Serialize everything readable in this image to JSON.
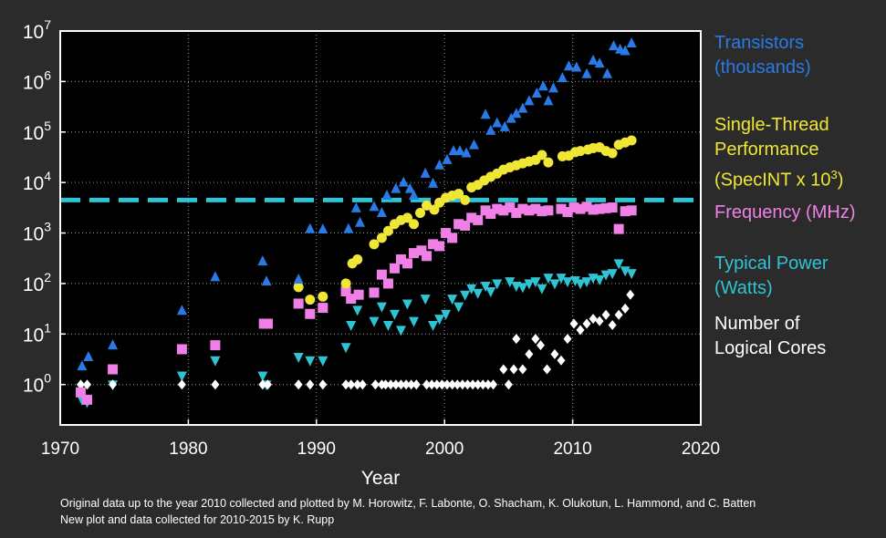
{
  "chart_data": {
    "type": "scatter",
    "xlabel": "Year",
    "xlim": [
      1970,
      2020
    ],
    "ylim_log10": [
      -0.8,
      7
    ],
    "yscale": "log",
    "xticks": [
      "1970",
      "1980",
      "1990",
      "2000",
      "2010",
      "2020"
    ],
    "yticks": [
      {
        "base": "10",
        "exp": "0",
        "value": 1
      },
      {
        "base": "10",
        "exp": "1",
        "value": 10
      },
      {
        "base": "10",
        "exp": "2",
        "value": 100
      },
      {
        "base": "10",
        "exp": "3",
        "value": 1000
      },
      {
        "base": "10",
        "exp": "4",
        "value": 10000
      },
      {
        "base": "10",
        "exp": "5",
        "value": 100000
      },
      {
        "base": "10",
        "exp": "6",
        "value": 1000000
      },
      {
        "base": "10",
        "exp": "7",
        "value": 10000000
      }
    ],
    "grid": true,
    "legend_position": "right",
    "reference_line": {
      "y": 4500,
      "color": "#2ec4d4",
      "style": "dashed"
    },
    "series": [
      {
        "name": "Transistors (thousands)",
        "marker": "triangle-up",
        "color": "#2a7ae6",
        "x": [
          1971.7,
          1972.2,
          1974.1,
          1979.5,
          1982.1,
          1985.8,
          1986.1,
          1988.6,
          1989.5,
          1990.5,
          1992.5,
          1993.1,
          1993.4,
          1994.5,
          1995.1,
          1995.5,
          1996.2,
          1996.8,
          1997.3,
          1997.6,
          1998.5,
          1999.1,
          1999.6,
          2000.2,
          2000.7,
          2001.2,
          2001.7,
          2002.3,
          2003.2,
          2003.6,
          2004.1,
          2004.7,
          2005.2,
          2005.6,
          2006.1,
          2006.6,
          2007.2,
          2007.7,
          2008.1,
          2008.5,
          2009.2,
          2009.7,
          2010.3,
          2011.1,
          2011.6,
          2012.1,
          2012.7,
          2013.2,
          2013.7,
          2014.1,
          2014.6
        ],
        "y": [
          2.3,
          3.5,
          6,
          29,
          134,
          275,
          110,
          120,
          1200,
          1180,
          1200,
          3100,
          1600,
          3300,
          2500,
          5500,
          7500,
          10000,
          7500,
          5500,
          15000,
          9500,
          22000,
          28000,
          42000,
          42000,
          38000,
          55000,
          220000,
          106000,
          150000,
          125000,
          184000,
          230000,
          291000,
          410000,
          580000,
          800000,
          410000,
          731000,
          1170000,
          2000000,
          1900000,
          1400000,
          2600000,
          2270000,
          1400000,
          5000000,
          4300000,
          4000000,
          5700000
        ]
      },
      {
        "name": "Single-Thread Performance (SpecINT x 10³)",
        "marker": "circle",
        "color": "#f0e636",
        "x": [
          1988.6,
          1989.5,
          1990.5,
          1992.3,
          1992.8,
          1993.2,
          1994.5,
          1995.1,
          1995.6,
          1996.1,
          1996.6,
          1997.1,
          1997.6,
          1998.1,
          1998.6,
          1999.2,
          1999.6,
          2000.1,
          2000.6,
          2001.1,
          2001.6,
          2002.1,
          2002.6,
          2003.1,
          2003.6,
          2004.1,
          2004.6,
          2005.1,
          2005.6,
          2006.1,
          2006.6,
          2007.1,
          2007.6,
          2008.1,
          2009.2,
          2009.7,
          2010.2,
          2010.6,
          2011.2,
          2011.6,
          2012.1,
          2012.6,
          2013.1,
          2013.6,
          2014.1,
          2014.6
        ],
        "y": [
          85,
          48,
          55,
          100,
          250,
          300,
          600,
          800,
          1100,
          1500,
          1800,
          2000,
          1500,
          2500,
          3500,
          2900,
          4000,
          5000,
          5500,
          6000,
          4500,
          8000,
          9000,
          11000,
          13000,
          15000,
          18000,
          20000,
          22000,
          24000,
          26000,
          28000,
          35000,
          25000,
          33000,
          34000,
          40000,
          42000,
          45000,
          48000,
          50000,
          42000,
          38000,
          56000,
          62000,
          68000
        ]
      },
      {
        "name": "Frequency (MHz)",
        "marker": "square",
        "color": "#f080e8",
        "x": [
          1971.6,
          1972.1,
          1974.1,
          1979.5,
          1982.1,
          1985.9,
          1986.2,
          1988.6,
          1989.5,
          1990.5,
          1992.3,
          1992.7,
          1993.3,
          1994.5,
          1995.1,
          1995.6,
          1996.1,
          1996.6,
          1997.1,
          1997.6,
          1998.2,
          1998.6,
          1999.1,
          1999.6,
          2000.1,
          2000.6,
          2001.1,
          2001.6,
          2002.1,
          2002.6,
          2003.2,
          2003.6,
          2004.1,
          2004.6,
          2005.1,
          2005.6,
          2006.1,
          2006.6,
          2007.1,
          2007.6,
          2008.1,
          2009.1,
          2009.6,
          2010.1,
          2010.6,
          2011.1,
          2011.6,
          2012.1,
          2012.6,
          2013.1,
          2013.6,
          2014.1,
          2014.6
        ],
        "y": [
          0.7,
          0.5,
          2,
          5,
          6,
          16,
          16,
          40,
          25,
          33,
          70,
          50,
          60,
          66,
          150,
          100,
          200,
          300,
          250,
          400,
          450,
          350,
          600,
          550,
          1000,
          800,
          1500,
          1400,
          2000,
          1800,
          2800,
          2400,
          3000,
          2800,
          3200,
          2500,
          3000,
          2800,
          3000,
          2700,
          2800,
          3000,
          2600,
          3200,
          3000,
          3300,
          2900,
          3000,
          3100,
          3200,
          1200,
          2700,
          2800
        ]
      },
      {
        "name": "Typical Power (Watts)",
        "marker": "triangle-down",
        "color": "#2ec4d4",
        "x": [
          1971.7,
          1972.1,
          1974.1,
          1979.5,
          1982.1,
          1985.8,
          1986.1,
          1988.6,
          1989.5,
          1990.5,
          1992.3,
          1992.7,
          1993.2,
          1994.5,
          1995.1,
          1995.6,
          1996.1,
          1996.6,
          1997.1,
          1997.6,
          1998.5,
          1999.1,
          1999.6,
          2000.1,
          2000.6,
          2001.1,
          2001.6,
          2002.1,
          2002.6,
          2003.2,
          2003.6,
          2004.1,
          2005.1,
          2005.6,
          2006.1,
          2006.6,
          2007.1,
          2007.6,
          2008.1,
          2008.6,
          2009.1,
          2009.6,
          2010.2,
          2010.6,
          2011.1,
          2011.6,
          2012.1,
          2012.6,
          2013.1,
          2013.6,
          2014.1,
          2014.6
        ],
        "y": [
          0.5,
          0.45,
          1,
          1.5,
          3,
          1.5,
          1,
          3.5,
          3,
          3,
          5.5,
          15,
          30,
          18,
          35,
          15,
          25,
          12,
          40,
          18,
          50,
          15,
          20,
          25,
          50,
          35,
          60,
          80,
          65,
          90,
          70,
          100,
          110,
          90,
          85,
          100,
          110,
          80,
          130,
          100,
          130,
          110,
          115,
          100,
          110,
          130,
          120,
          150,
          160,
          250,
          180,
          160
        ]
      },
      {
        "name": "Number of Logical Cores",
        "marker": "diamond",
        "color": "#ffffff",
        "x": [
          1971.6,
          1972.1,
          1974.1,
          1979.5,
          1982.1,
          1985.8,
          1986.2,
          1988.6,
          1989.5,
          1990.5,
          1992.3,
          1992.7,
          1993.2,
          1993.6,
          1994.6,
          1995.1,
          1995.4,
          1995.8,
          1996.2,
          1996.6,
          1997.0,
          1997.4,
          1997.8,
          1998.6,
          1999.0,
          1999.4,
          1999.8,
          2000.2,
          2000.6,
          2001.0,
          2001.4,
          2001.8,
          2002.2,
          2002.6,
          2003.0,
          2003.4,
          2003.8,
          2004.6,
          2005.0,
          2005.4,
          2005.6,
          2006.1,
          2006.6,
          2007.1,
          2007.5,
          2008.0,
          2008.6,
          2009.1,
          2009.6,
          2010.1,
          2010.6,
          2011.1,
          2011.6,
          2012.1,
          2012.6,
          2013.1,
          2013.6,
          2014.1,
          2014.5
        ],
        "y": [
          1,
          1,
          1,
          1,
          1,
          1,
          1,
          1,
          1,
          1,
          1,
          1,
          1,
          1,
          1,
          1,
          1,
          1,
          1,
          1,
          1,
          1,
          1,
          1,
          1,
          1,
          1,
          1,
          1,
          1,
          1,
          1,
          1,
          1,
          1,
          1,
          1,
          2,
          1,
          2,
          8,
          2,
          4,
          8,
          6,
          2,
          4,
          3,
          8,
          16,
          12,
          16,
          20,
          18,
          24,
          15,
          24,
          32,
          60
        ]
      }
    ]
  },
  "legend": {
    "transistors": {
      "line1": "Transistors",
      "line2": "(thousands)"
    },
    "single_thread": {
      "line1": "Single-Thread",
      "line2": "Performance",
      "line3a": "(SpecINT x 10",
      "line3sup": "3",
      "line3b": ")"
    },
    "frequency": {
      "line1": "Frequency (MHz)"
    },
    "power": {
      "line1": "Typical Power",
      "line2": "(Watts)"
    },
    "cores": {
      "line1": "Number of",
      "line2": "Logical Cores"
    }
  },
  "credits": {
    "line1": "Original data up to the year 2010 collected and plotted by M. Horowitz, F. Labonte, O. Shacham, K. Olukotun, L. Hammond, and C. Batten",
    "line2": "New plot and data collected for 2010-2015 by K. Rupp"
  }
}
